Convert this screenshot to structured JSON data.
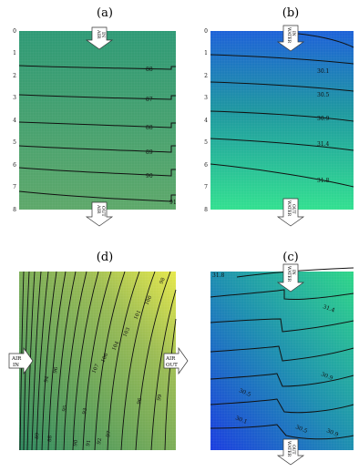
{
  "panels": [
    {
      "id": "a",
      "label": "(a)",
      "y_ticks": [
        "0",
        "1",
        "2",
        "3",
        "4",
        "5",
        "6",
        "7",
        "8"
      ],
      "contour_labels": [
        "88",
        "87",
        "88",
        "89",
        "90",
        "91"
      ],
      "inlet_arrow": {
        "text_line1": "AIR",
        "text_line2": "IN"
      },
      "outlet_arrow": {
        "text_line1": "AIR",
        "text_line2": "OUT"
      },
      "colors": {
        "top": "#2f9a76",
        "bottom": "#5ea86a"
      }
    },
    {
      "id": "b",
      "label": "(b)",
      "y_ticks": [
        "0",
        "1",
        "2",
        "3",
        "4",
        "5",
        "6",
        "7",
        "8"
      ],
      "contour_labels": [
        "30.1",
        "30.5",
        "30.9",
        "31.4",
        "31.8"
      ],
      "inlet_arrow": {
        "text_line1": "WATER",
        "text_line2": "IN"
      },
      "outlet_arrow": {
        "text_line1": "WATER",
        "text_line2": "OUT"
      },
      "colors": {
        "top": "#1e62d8",
        "mid": "#1f98a0",
        "bottom": "#33e090"
      }
    },
    {
      "id": "d",
      "label": "(d)",
      "contour_labels": [
        "98",
        "100",
        "101",
        "103",
        "104",
        "106",
        "107",
        "96",
        "94",
        "95",
        "93",
        "96",
        "99",
        "97",
        "92",
        "91",
        "90",
        "88",
        "89"
      ],
      "inlet_arrow": {
        "text_line1": "AIR",
        "text_line2": "IN"
      },
      "outlet_arrow": {
        "text_line1": "AIR",
        "text_line2": "OUT"
      },
      "colors": {
        "left": "#2f8a60",
        "right": "#b9c94a",
        "corner": "#e6e84c"
      }
    },
    {
      "id": "c",
      "label": "(c)",
      "contour_labels": [
        "31.8",
        "31.4",
        "30.9",
        "30.5",
        "30.1",
        "30.5",
        "30.9"
      ],
      "inlet_arrow": {
        "text_line1": "WATER",
        "text_line2": "IN"
      },
      "outlet_arrow": {
        "text_line1": "WATER",
        "text_line2": "OUT"
      },
      "colors": {
        "top": "#2fd688",
        "mid": "#1e8fb0",
        "bottom": "#1c3ee0"
      }
    }
  ]
}
